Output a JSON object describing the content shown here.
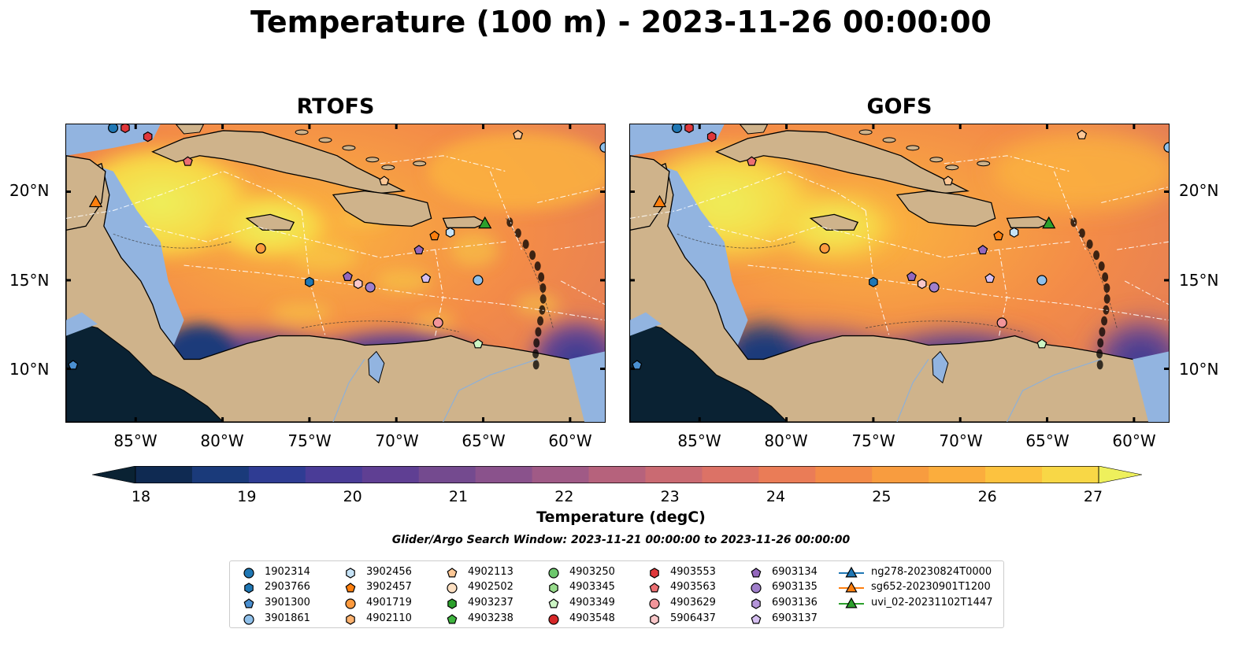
{
  "title": "Temperature (100 m) - 2023-11-26 00:00:00",
  "panels": [
    {
      "title": "RTOFS",
      "variant": "rtofs"
    },
    {
      "title": "GOFS",
      "variant": "gofs"
    }
  ],
  "lat_labels": [
    "20°N",
    "15°N",
    "10°N"
  ],
  "lon_labels": [
    "85°W",
    "80°W",
    "75°W",
    "70°W",
    "65°W",
    "60°W"
  ],
  "colorbar": {
    "label": "Temperature (degC)",
    "min": 18,
    "max": 27,
    "ticks": [
      "18",
      "19",
      "20",
      "21",
      "22",
      "23",
      "24",
      "25",
      "26",
      "27"
    ],
    "colors": [
      "#0a2233",
      "#0f2a52",
      "#1a3a7a",
      "#2f3c93",
      "#4a3c97",
      "#5f3f93",
      "#744a8f",
      "#8a528c",
      "#a05a86",
      "#b6627c",
      "#ca6a72",
      "#dc7266",
      "#ea7c57",
      "#f38b48",
      "#f89c3f",
      "#fbad3d",
      "#fcc23f",
      "#f8d746",
      "#eef05c"
    ]
  },
  "window_text": "Glider/Argo Search Window: 2023-11-21 00:00:00 to 2023-11-26 00:00:00",
  "legend": [
    {
      "label": "1902314",
      "shape": "circle",
      "color": "#1f77b4"
    },
    {
      "label": "2903766",
      "shape": "hexagon",
      "color": "#1f77b4"
    },
    {
      "label": "3901300",
      "shape": "pentagon",
      "color": "#4a8fd0"
    },
    {
      "label": "3901861",
      "shape": "circle",
      "color": "#8fc0ea"
    },
    {
      "label": "3902456",
      "shape": "hexagon",
      "color": "#c6e3f7"
    },
    {
      "label": "3902457",
      "shape": "pentagon",
      "color": "#ff7f0e"
    },
    {
      "label": "4901719",
      "shape": "circle",
      "color": "#fd9a3e"
    },
    {
      "label": "4902110",
      "shape": "hexagon",
      "color": "#fdb26f"
    },
    {
      "label": "4902113",
      "shape": "pentagon",
      "color": "#fdc795"
    },
    {
      "label": "4902502",
      "shape": "circle",
      "color": "#fde0c2"
    },
    {
      "label": "4903237",
      "shape": "hexagon",
      "color": "#2ca02c"
    },
    {
      "label": "4903238",
      "shape": "pentagon",
      "color": "#3fb53f"
    },
    {
      "label": "4903250",
      "shape": "circle",
      "color": "#6cc76c"
    },
    {
      "label": "4903345",
      "shape": "hexagon",
      "color": "#98dc8c"
    },
    {
      "label": "4903349",
      "shape": "pentagon",
      "color": "#ccf5c4"
    },
    {
      "label": "4903548",
      "shape": "circle",
      "color": "#d62728"
    },
    {
      "label": "4903553",
      "shape": "hexagon",
      "color": "#e0373a"
    },
    {
      "label": "4903563",
      "shape": "pentagon",
      "color": "#ec6f72"
    },
    {
      "label": "4903629",
      "shape": "circle",
      "color": "#f2959a"
    },
    {
      "label": "5906437",
      "shape": "hexagon",
      "color": "#f9c7c9"
    },
    {
      "label": "6903134",
      "shape": "pentagon",
      "color": "#9467bd"
    },
    {
      "label": "6903135",
      "shape": "circle",
      "color": "#a07fcb"
    },
    {
      "label": "6903136",
      "shape": "hexagon",
      "color": "#b595da"
    },
    {
      "label": "6903137",
      "shape": "pentagon",
      "color": "#d5bff0"
    },
    {
      "label": "ng278-20230824T0000",
      "shape": "triangle",
      "color": "#1f77b4"
    },
    {
      "label": "sg652-20230901T1200",
      "shape": "triangle",
      "color": "#ff7f0e"
    },
    {
      "label": "uvi_02-20231102T1447",
      "shape": "triangle",
      "color": "#2ca02c"
    }
  ]
}
